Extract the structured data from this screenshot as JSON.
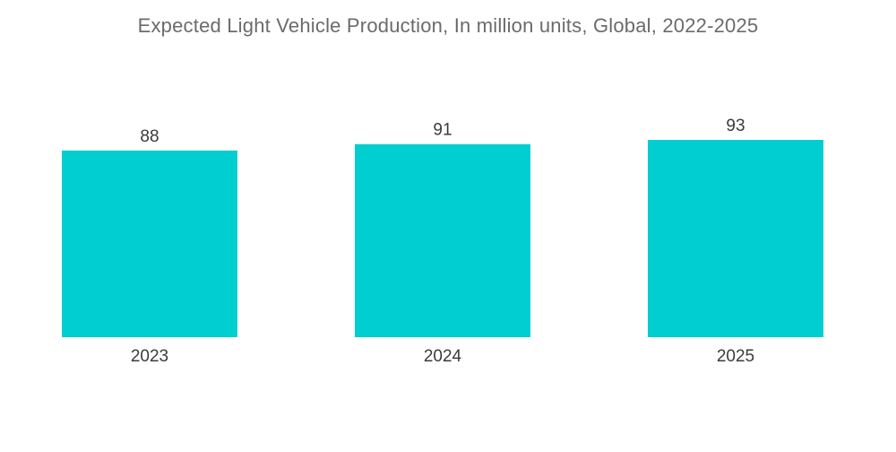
{
  "chart_data": {
    "type": "bar",
    "title": "Expected Light Vehicle Production, In million units, Global, 2022-2025",
    "categories": [
      "2023",
      "2024",
      "2025"
    ],
    "values": [
      88,
      91,
      93
    ],
    "xlabel": "",
    "ylabel": "",
    "ylim": [
      0,
      93
    ],
    "grid": false,
    "legend": "none",
    "bar_color": "#00CED1",
    "data_labels": true
  }
}
